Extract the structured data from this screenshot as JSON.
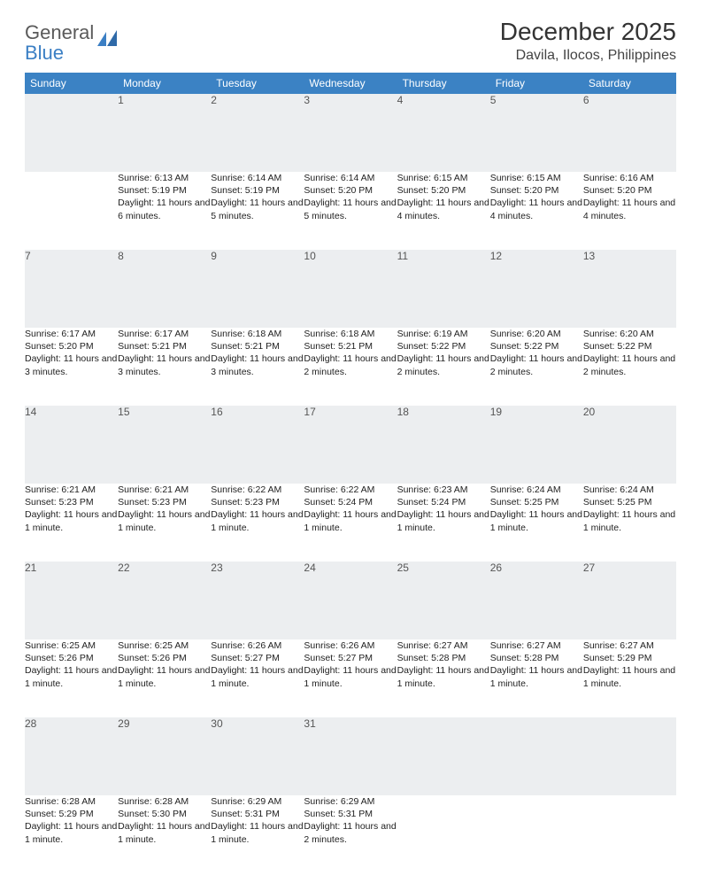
{
  "logo": {
    "word1": "General",
    "word2": "Blue"
  },
  "title": "December 2025",
  "location": "Davila, Ilocos, Philippines",
  "colors": {
    "header_bg": "#3b82c4",
    "header_text": "#ffffff",
    "daynum_bg": "#eceef0",
    "daynum_text": "#555555",
    "divider": "#3b6fa0",
    "body_text": "#222222",
    "page_bg": "#ffffff",
    "logo_gray": "#5a5a5a",
    "logo_blue": "#3b7fc4"
  },
  "day_headers": [
    "Sunday",
    "Monday",
    "Tuesday",
    "Wednesday",
    "Thursday",
    "Friday",
    "Saturday"
  ],
  "weeks": [
    {
      "nums": [
        "",
        "1",
        "2",
        "3",
        "4",
        "5",
        "6"
      ],
      "cells": [
        null,
        {
          "sunrise": "Sunrise: 6:13 AM",
          "sunset": "Sunset: 5:19 PM",
          "daylight": "Daylight: 11 hours and 6 minutes."
        },
        {
          "sunrise": "Sunrise: 6:14 AM",
          "sunset": "Sunset: 5:19 PM",
          "daylight": "Daylight: 11 hours and 5 minutes."
        },
        {
          "sunrise": "Sunrise: 6:14 AM",
          "sunset": "Sunset: 5:20 PM",
          "daylight": "Daylight: 11 hours and 5 minutes."
        },
        {
          "sunrise": "Sunrise: 6:15 AM",
          "sunset": "Sunset: 5:20 PM",
          "daylight": "Daylight: 11 hours and 4 minutes."
        },
        {
          "sunrise": "Sunrise: 6:15 AM",
          "sunset": "Sunset: 5:20 PM",
          "daylight": "Daylight: 11 hours and 4 minutes."
        },
        {
          "sunrise": "Sunrise: 6:16 AM",
          "sunset": "Sunset: 5:20 PM",
          "daylight": "Daylight: 11 hours and 4 minutes."
        }
      ]
    },
    {
      "nums": [
        "7",
        "8",
        "9",
        "10",
        "11",
        "12",
        "13"
      ],
      "cells": [
        {
          "sunrise": "Sunrise: 6:17 AM",
          "sunset": "Sunset: 5:20 PM",
          "daylight": "Daylight: 11 hours and 3 minutes."
        },
        {
          "sunrise": "Sunrise: 6:17 AM",
          "sunset": "Sunset: 5:21 PM",
          "daylight": "Daylight: 11 hours and 3 minutes."
        },
        {
          "sunrise": "Sunrise: 6:18 AM",
          "sunset": "Sunset: 5:21 PM",
          "daylight": "Daylight: 11 hours and 3 minutes."
        },
        {
          "sunrise": "Sunrise: 6:18 AM",
          "sunset": "Sunset: 5:21 PM",
          "daylight": "Daylight: 11 hours and 2 minutes."
        },
        {
          "sunrise": "Sunrise: 6:19 AM",
          "sunset": "Sunset: 5:22 PM",
          "daylight": "Daylight: 11 hours and 2 minutes."
        },
        {
          "sunrise": "Sunrise: 6:20 AM",
          "sunset": "Sunset: 5:22 PM",
          "daylight": "Daylight: 11 hours and 2 minutes."
        },
        {
          "sunrise": "Sunrise: 6:20 AM",
          "sunset": "Sunset: 5:22 PM",
          "daylight": "Daylight: 11 hours and 2 minutes."
        }
      ]
    },
    {
      "nums": [
        "14",
        "15",
        "16",
        "17",
        "18",
        "19",
        "20"
      ],
      "cells": [
        {
          "sunrise": "Sunrise: 6:21 AM",
          "sunset": "Sunset: 5:23 PM",
          "daylight": "Daylight: 11 hours and 1 minute."
        },
        {
          "sunrise": "Sunrise: 6:21 AM",
          "sunset": "Sunset: 5:23 PM",
          "daylight": "Daylight: 11 hours and 1 minute."
        },
        {
          "sunrise": "Sunrise: 6:22 AM",
          "sunset": "Sunset: 5:23 PM",
          "daylight": "Daylight: 11 hours and 1 minute."
        },
        {
          "sunrise": "Sunrise: 6:22 AM",
          "sunset": "Sunset: 5:24 PM",
          "daylight": "Daylight: 11 hours and 1 minute."
        },
        {
          "sunrise": "Sunrise: 6:23 AM",
          "sunset": "Sunset: 5:24 PM",
          "daylight": "Daylight: 11 hours and 1 minute."
        },
        {
          "sunrise": "Sunrise: 6:24 AM",
          "sunset": "Sunset: 5:25 PM",
          "daylight": "Daylight: 11 hours and 1 minute."
        },
        {
          "sunrise": "Sunrise: 6:24 AM",
          "sunset": "Sunset: 5:25 PM",
          "daylight": "Daylight: 11 hours and 1 minute."
        }
      ]
    },
    {
      "nums": [
        "21",
        "22",
        "23",
        "24",
        "25",
        "26",
        "27"
      ],
      "cells": [
        {
          "sunrise": "Sunrise: 6:25 AM",
          "sunset": "Sunset: 5:26 PM",
          "daylight": "Daylight: 11 hours and 1 minute."
        },
        {
          "sunrise": "Sunrise: 6:25 AM",
          "sunset": "Sunset: 5:26 PM",
          "daylight": "Daylight: 11 hours and 1 minute."
        },
        {
          "sunrise": "Sunrise: 6:26 AM",
          "sunset": "Sunset: 5:27 PM",
          "daylight": "Daylight: 11 hours and 1 minute."
        },
        {
          "sunrise": "Sunrise: 6:26 AM",
          "sunset": "Sunset: 5:27 PM",
          "daylight": "Daylight: 11 hours and 1 minute."
        },
        {
          "sunrise": "Sunrise: 6:27 AM",
          "sunset": "Sunset: 5:28 PM",
          "daylight": "Daylight: 11 hours and 1 minute."
        },
        {
          "sunrise": "Sunrise: 6:27 AM",
          "sunset": "Sunset: 5:28 PM",
          "daylight": "Daylight: 11 hours and 1 minute."
        },
        {
          "sunrise": "Sunrise: 6:27 AM",
          "sunset": "Sunset: 5:29 PM",
          "daylight": "Daylight: 11 hours and 1 minute."
        }
      ]
    },
    {
      "nums": [
        "28",
        "29",
        "30",
        "31",
        "",
        "",
        ""
      ],
      "cells": [
        {
          "sunrise": "Sunrise: 6:28 AM",
          "sunset": "Sunset: 5:29 PM",
          "daylight": "Daylight: 11 hours and 1 minute."
        },
        {
          "sunrise": "Sunrise: 6:28 AM",
          "sunset": "Sunset: 5:30 PM",
          "daylight": "Daylight: 11 hours and 1 minute."
        },
        {
          "sunrise": "Sunrise: 6:29 AM",
          "sunset": "Sunset: 5:31 PM",
          "daylight": "Daylight: 11 hours and 1 minute."
        },
        {
          "sunrise": "Sunrise: 6:29 AM",
          "sunset": "Sunset: 5:31 PM",
          "daylight": "Daylight: 11 hours and 2 minutes."
        },
        null,
        null,
        null
      ]
    }
  ]
}
